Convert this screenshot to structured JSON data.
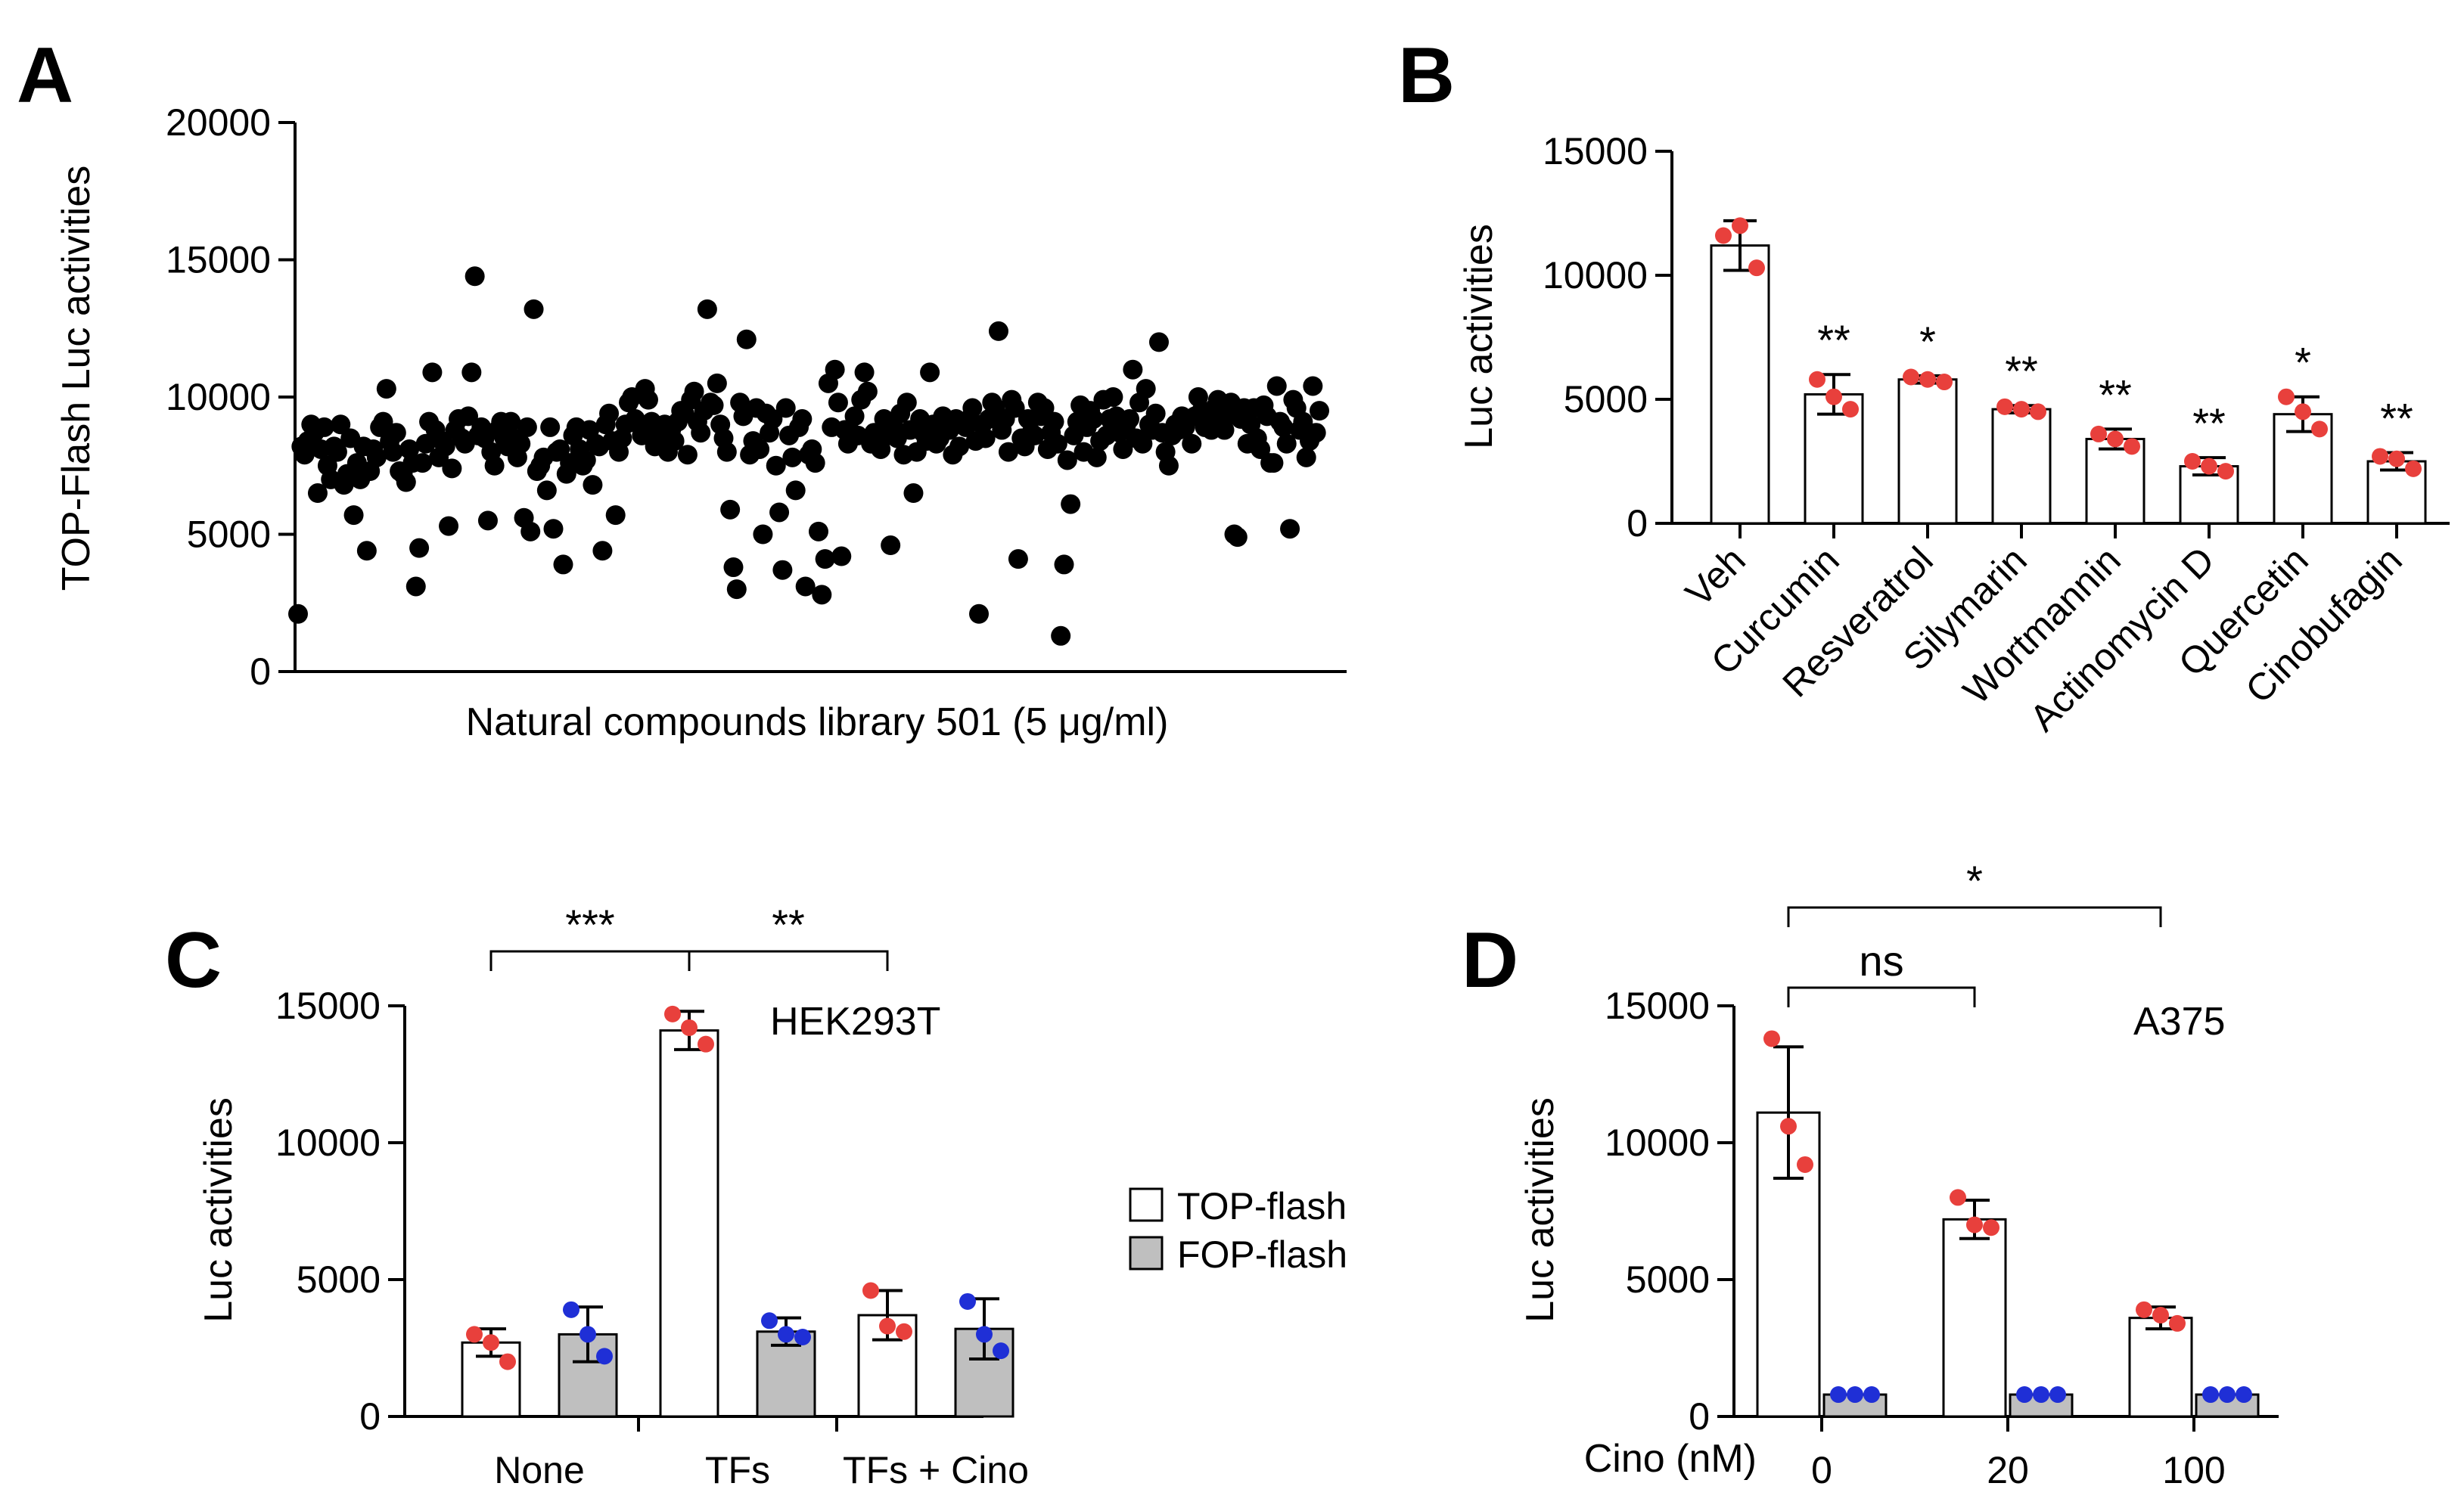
{
  "chart_data": [
    {
      "id": "A",
      "panel_label": "A",
      "type": "scatter",
      "title": "",
      "xlabel": "Natural compounds library 501 (5 μg/ml)",
      "ylabel": "TOP-Flash Luc activities",
      "ylim": [
        0,
        20000
      ],
      "yticks": [
        0,
        5000,
        10000,
        15000,
        20000
      ],
      "ytick_labels": [
        "0",
        "5000",
        "10000",
        "15000",
        "20000"
      ],
      "point_color": "#000000",
      "values": [
        2100,
        8200,
        7900,
        8400,
        9000,
        8700,
        6500,
        8100,
        8900,
        7500,
        7000,
        8200,
        8000,
        9000,
        6800,
        7200,
        8500,
        5700,
        7600,
        7000,
        8200,
        4400,
        7300,
        8100,
        7800,
        8900,
        9100,
        10300,
        8400,
        8000,
        8700,
        7300,
        7200,
        6900,
        8100,
        7600,
        3100,
        4500,
        7600,
        8300,
        9100,
        10900,
        8800,
        7800,
        8400,
        8200,
        5300,
        7400,
        8800,
        9200,
        8500,
        8300,
        9300,
        10900,
        14400,
        8600,
        8900,
        8500,
        5500,
        8000,
        7500,
        8800,
        9100,
        8500,
        8200,
        9100,
        8500,
        7800,
        8300,
        5600,
        8900,
        5100,
        13200,
        7300,
        7500,
        7800,
        6600,
        8900,
        5200,
        8000,
        8100,
        3900,
        7200,
        7600,
        8600,
        8900,
        8100,
        7500,
        7700,
        8800,
        6800,
        8300,
        8200,
        4400,
        9000,
        9400,
        8400,
        5700,
        8000,
        8500,
        9000,
        9800,
        10000,
        9200,
        9000,
        8600,
        10300,
        9900,
        9100,
        8200,
        8700,
        8600,
        9000,
        8000,
        8800,
        8400,
        9100,
        9500,
        9400,
        7900,
        9900,
        10200,
        9100,
        8700,
        9500,
        13200,
        9800,
        9700,
        10500,
        9000,
        8500,
        8000,
        5900,
        3800,
        3000,
        9800,
        9300,
        12100,
        7900,
        8400,
        9600,
        8100,
        5000,
        9400,
        8700,
        9200,
        7500,
        5800,
        3700,
        9600,
        8600,
        7800,
        6600,
        8900,
        9200,
        3100,
        7900,
        8100,
        7600,
        5100,
        2800,
        4100,
        10500,
        8900,
        11000,
        9800,
        4200,
        8800,
        8300,
        8700,
        9300,
        8600,
        9900,
        10900,
        10200,
        8300,
        8700,
        8400,
        8100,
        9200,
        8600,
        4600,
        8900,
        8500,
        9400,
        7900,
        9800,
        8800,
        6500,
        8000,
        9200,
        8700,
        8400,
        10900,
        9000,
        8300,
        8500,
        9300,
        8800,
        8800,
        7900,
        9200,
        8200,
        9000,
        8900,
        9200,
        9600,
        8400,
        2100,
        9000,
        8500,
        9200,
        9800,
        9600,
        12400,
        8800,
        9200,
        8000,
        9900,
        9600,
        4100,
        8500,
        8200,
        9200,
        8700,
        8600,
        9800,
        9300,
        9600,
        8100,
        8700,
        9100,
        8300,
        1300,
        3900,
        7700,
        6100,
        8600,
        9100,
        9700,
        8000,
        8900,
        9500,
        9200,
        7800,
        8400,
        9900,
        8600,
        9200,
        10000,
        9300,
        8700,
        8100,
        9000,
        9200,
        11000,
        8500,
        9800,
        8300,
        10300,
        9000,
        8800,
        9400,
        12000,
        8700,
        8000,
        7500,
        8600,
        9000,
        8800,
        9300,
        8900,
        9200,
        8300,
        9300,
        10000,
        9500,
        8900,
        9200,
        8800,
        9600,
        9900,
        9100,
        8800,
        9300,
        9800,
        5000,
        4900,
        9200,
        9600,
        8300,
        9000,
        9600,
        8500,
        8100,
        9700,
        9300,
        7600,
        7600,
        10400,
        9100,
        8900,
        8300,
        5200,
        9900,
        9600,
        8800,
        9100,
        7800,
        8400,
        10400,
        8700,
        9500
      ]
    },
    {
      "id": "B",
      "panel_label": "B",
      "type": "bar",
      "title": "",
      "xlabel": "",
      "ylabel": "Luc activities",
      "ylim": [
        0,
        15000
      ],
      "yticks": [
        0,
        5000,
        10000,
        15000
      ],
      "ytick_labels": [
        "0",
        "5000",
        "10000",
        "15000"
      ],
      "categories": [
        "Veh",
        "Curcumin",
        "Resveratrol",
        "Silymarin",
        "Wortmannin",
        "Actinomycin D",
        "Quercetin",
        "Cinobufagin"
      ],
      "values": [
        11200,
        5200,
        5800,
        4600,
        3400,
        2300,
        4400,
        2500
      ],
      "errors": [
        1000,
        800,
        150,
        150,
        400,
        350,
        700,
        350
      ],
      "points": [
        [
          11600,
          12000,
          10300
        ],
        [
          5800,
          5100,
          4600
        ],
        [
          5900,
          5800,
          5700
        ],
        [
          4700,
          4600,
          4500
        ],
        [
          3600,
          3400,
          3100
        ],
        [
          2500,
          2300,
          2100
        ],
        [
          5100,
          4500,
          3800
        ],
        [
          2700,
          2600,
          2200
        ]
      ],
      "significance": [
        "",
        "**",
        "*",
        "**",
        "**",
        "**",
        "*",
        "**"
      ],
      "bar_fill": "#ffffff",
      "point_color": "#e8403c"
    },
    {
      "id": "C",
      "panel_label": "C",
      "type": "bar",
      "title": "HEK293T",
      "xlabel": "",
      "ylabel": "Luc activities",
      "ylim": [
        0,
        15000
      ],
      "yticks": [
        0,
        5000,
        10000,
        15000
      ],
      "ytick_labels": [
        "0",
        "5000",
        "10000",
        "15000"
      ],
      "categories": [
        "None",
        "TFs",
        "TFs + Cino"
      ],
      "series": [
        {
          "name": "TOP-flash",
          "fill": "#ffffff",
          "point_color": "#e8403c",
          "values": [
            2700,
            14100,
            3700
          ],
          "errors": [
            500,
            700,
            900
          ],
          "points": [
            [
              3000,
              2700,
              2000
            ],
            [
              14700,
              14200,
              13600
            ],
            [
              4600,
              3300,
              3100
            ]
          ]
        },
        {
          "name": "FOP-flash",
          "fill": "#bfbfbf",
          "point_color": "#1f2fd6",
          "values": [
            3000,
            3100,
            3200
          ],
          "errors": [
            1000,
            500,
            1100
          ],
          "points": [
            [
              3900,
              3000,
              2200
            ],
            [
              3500,
              3000,
              2900
            ],
            [
              4200,
              3000,
              2400
            ]
          ]
        }
      ],
      "brackets": [
        {
          "from": "None/TOP-flash",
          "to": "TFs/TOP-flash",
          "label": "***"
        },
        {
          "from": "TFs/TOP-flash",
          "to": "TFs + Cino/TOP-flash",
          "label": "**"
        }
      ],
      "legend": {
        "position": "right",
        "entries": [
          "TOP-flash",
          "FOP-flash"
        ]
      }
    },
    {
      "id": "D",
      "panel_label": "D",
      "type": "bar",
      "title": "A375",
      "xlabel": "Cino (nM)",
      "ylabel": "Luc activities",
      "ylim": [
        0,
        15000
      ],
      "yticks": [
        0,
        5000,
        10000,
        15000
      ],
      "ytick_labels": [
        "0",
        "5000",
        "10000",
        "15000"
      ],
      "categories": [
        "0",
        "20",
        "100"
      ],
      "series": [
        {
          "name": "TOP-flash",
          "fill": "#ffffff",
          "point_color": "#e8403c",
          "values": [
            11100,
            7200,
            3600
          ],
          "errors": [
            2400,
            700,
            400
          ],
          "points": [
            [
              13800,
              10600,
              9200
            ],
            [
              8000,
              7000,
              6900
            ],
            [
              3900,
              3700,
              3400
            ]
          ]
        },
        {
          "name": "FOP-flash",
          "fill": "#bfbfbf",
          "point_color": "#1f2fd6",
          "values": [
            800,
            800,
            800
          ],
          "errors": [
            0,
            0,
            0
          ],
          "points": [
            [
              800,
              800,
              800
            ],
            [
              800,
              800,
              800
            ],
            [
              800,
              800,
              800
            ]
          ]
        }
      ],
      "brackets": [
        {
          "from": "0/TOP-flash",
          "to": "20/TOP-flash",
          "label": "ns"
        },
        {
          "from": "0/TOP-flash",
          "to": "100/TOP-flash",
          "label": "*"
        }
      ]
    }
  ]
}
